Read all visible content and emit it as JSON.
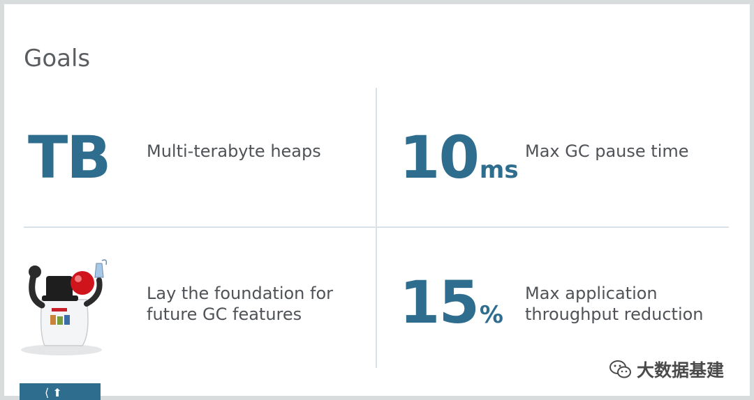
{
  "slide": {
    "title": "Goals"
  },
  "goals": [
    {
      "big": "TB",
      "unit": "",
      "description": [
        "Multi-terabyte heaps"
      ]
    },
    {
      "big": "10",
      "unit": "ms",
      "description": [
        "Max GC pause time"
      ]
    },
    {
      "big": "",
      "unit": "",
      "icon": "mascot-icon",
      "description": [
        "Lay the foundation for",
        "future GC features"
      ]
    },
    {
      "big": "15",
      "unit": "%",
      "description": [
        "Max application",
        "throughput reduction"
      ]
    }
  ],
  "watermark": {
    "text": "大数据基建",
    "icon": "wechat-icon"
  },
  "colors": {
    "accent": "#2f6d8f",
    "divider": "#d7e2ea",
    "text": "#4f5357",
    "title": "#5a5d60"
  }
}
